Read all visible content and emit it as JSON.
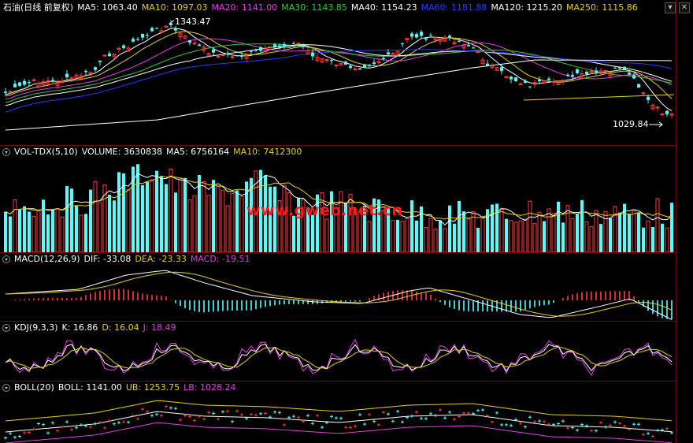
{
  "main": {
    "title": "石油(日线 前复权)",
    "ma": [
      {
        "label": "MA5: 1063.40",
        "color": "#ffffff"
      },
      {
        "label": "MA10: 1097.03",
        "color": "#e8d100"
      },
      {
        "label": "MA20: 1141.00",
        "color": "#e040e0"
      },
      {
        "label": "MA30: 1143.85",
        "color": "#33cc33"
      },
      {
        "label": "MA40: 1154.23",
        "color": "#ffffff"
      },
      {
        "label": "MA60: 1181.88",
        "color": "#2a3cff"
      },
      {
        "label": "MA120: 1215.20",
        "color": "#ffffff"
      },
      {
        "label": "MA250: 1115.86",
        "color": "#e8d100"
      }
    ],
    "high_label": "1343.47",
    "low_label": "1029.84"
  },
  "volume": {
    "title": "VOL-TDX(5,10)",
    "values": [
      {
        "label": "VOLUME: 3630838",
        "color": "#ffffff"
      },
      {
        "label": "MA5: 6756164",
        "color": "#ffffff"
      },
      {
        "label": "MA10: 7412300",
        "color": "#e8d100"
      }
    ]
  },
  "macd": {
    "title": "MACD(12,26,9)",
    "values": [
      {
        "label": "DIF: -33.08",
        "color": "#ffffff"
      },
      {
        "label": "DEA: -23.33",
        "color": "#e8d100"
      },
      {
        "label": "MACD: -19.51",
        "color": "#e040e0"
      }
    ]
  },
  "kdj": {
    "title": "KDJ(9,3,3)",
    "values": [
      {
        "label": "K: 16.86",
        "color": "#ffffff"
      },
      {
        "label": "D: 16.04",
        "color": "#e8d100"
      },
      {
        "label": "J: 18.49",
        "color": "#e040e0"
      }
    ]
  },
  "boll": {
    "title": "BOLL(20)",
    "values": [
      {
        "label": "BOLL: 1141.00",
        "color": "#ffffff"
      },
      {
        "label": "UB: 1253.75",
        "color": "#e8d100"
      },
      {
        "label": "LB: 1028.24",
        "color": "#e040e0"
      }
    ]
  },
  "watermark": "www.gweb.net.cn",
  "colors": {
    "up": "#ff3c3c",
    "down": "#54ffff",
    "grid": "#7a0000"
  }
}
